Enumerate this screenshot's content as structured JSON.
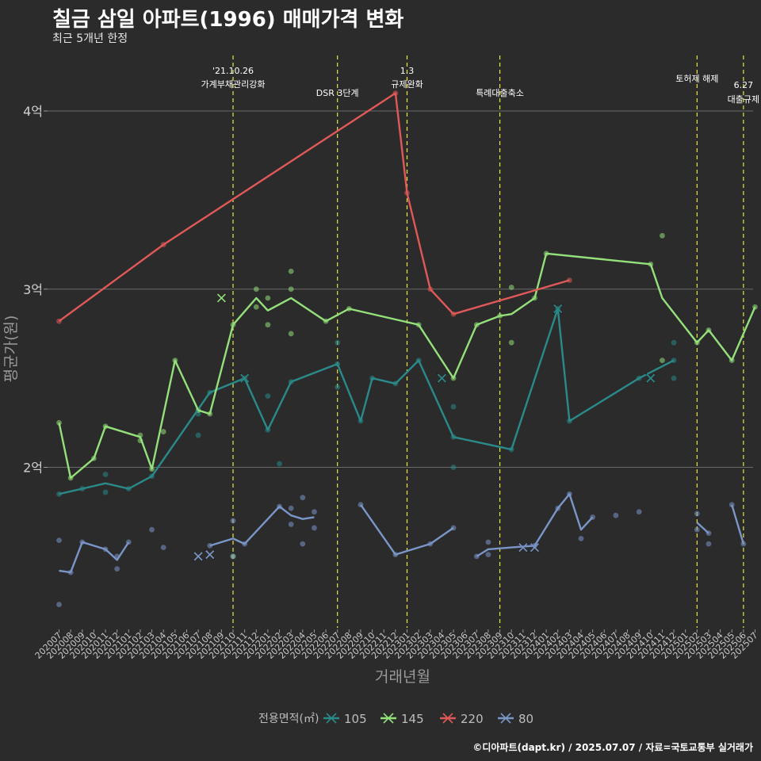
{
  "title": "칠금 삼일 아파트(1996) 매매가격 변화",
  "subtitle": "최근 5개년 한정",
  "caption": "©디아파트(dapt.kr) / 2025.07.07 / 자료=국토교통부 실거래가",
  "chart_data": {
    "type": "line",
    "xlabel": "거래년월",
    "ylabel": "평균가(원)",
    "ylim": [
      11500,
      43000
    ],
    "yticks": [
      {
        "v": 20000,
        "label": "2억"
      },
      {
        "v": 30000,
        "label": "3억"
      },
      {
        "v": 40000,
        "label": "4억"
      }
    ],
    "categories": [
      "202007",
      "202008",
      "202009",
      "202010",
      "202011",
      "202012",
      "202101",
      "202102",
      "202103",
      "202104",
      "202105",
      "202106",
      "202107",
      "202108",
      "202109",
      "202110",
      "202111",
      "202112",
      "202201",
      "202202",
      "202203",
      "202204",
      "202205",
      "202206",
      "202207",
      "202208",
      "202209",
      "202210",
      "202211",
      "202212",
      "202301",
      "202302",
      "202303",
      "202304",
      "202305",
      "202306",
      "202307",
      "202308",
      "202309",
      "202310",
      "202311",
      "202312",
      "202401",
      "202402",
      "202403",
      "202404",
      "202405",
      "202406",
      "202407",
      "202408",
      "202409",
      "202410",
      "202411",
      "202412",
      "202501",
      "202502",
      "202503",
      "202504",
      "202505",
      "202506",
      "202507"
    ],
    "grid": true,
    "legend_title": "전용면적(㎡)",
    "legend_position": "bottom",
    "annotations": [
      {
        "x": "202110",
        "lines": [
          "'21.10.26",
          "가계부채관리강화"
        ]
      },
      {
        "x": "202207",
        "lines": [
          "DSR 3단계"
        ]
      },
      {
        "x": "202301",
        "lines": [
          "1.3",
          "규제완화"
        ]
      },
      {
        "x": "202309",
        "lines": [
          "특례대출축소"
        ]
      },
      {
        "x": "202502",
        "lines": [
          "토허제 해제"
        ]
      },
      {
        "x": "202506",
        "lines": [
          "6.27",
          "대출규제"
        ]
      }
    ],
    "series": [
      {
        "name": "105",
        "color": "#2a8a8a",
        "line": [
          [
            "202007",
            18500
          ],
          [
            "202009",
            18800
          ],
          [
            "202011",
            19100
          ],
          [
            "202101",
            18800
          ],
          [
            "202103",
            19500
          ],
          [
            "202108",
            24200
          ],
          [
            "202111",
            25000
          ],
          [
            "202201",
            22100
          ],
          [
            "202203",
            24800
          ],
          [
            "202207",
            25800
          ],
          [
            "202209",
            22600
          ],
          [
            "202210",
            25000
          ],
          [
            "202212",
            24700
          ],
          [
            "202302",
            26000
          ],
          [
            "202305",
            21700
          ],
          [
            "202310",
            21000
          ],
          [
            "202402",
            28900
          ],
          [
            "202403",
            22600
          ],
          [
            "202409",
            25000
          ],
          [
            "202412",
            26000
          ]
        ],
        "points": [
          [
            "202007",
            18500
          ],
          [
            "202009",
            18800
          ],
          [
            "202011",
            18600
          ],
          [
            "202011",
            19600
          ],
          [
            "202101",
            18800
          ],
          [
            "202103",
            19500
          ],
          [
            "202108",
            24200
          ],
          [
            "202107",
            23000
          ],
          [
            "202107",
            21800
          ],
          [
            "202111",
            25000
          ],
          [
            "202201",
            22100
          ],
          [
            "202201",
            24000
          ],
          [
            "202202",
            20200
          ],
          [
            "202203",
            24800
          ],
          [
            "202207",
            25800
          ],
          [
            "202207",
            27000
          ],
          [
            "202207",
            24500
          ],
          [
            "202209",
            22600
          ],
          [
            "202210",
            25000
          ],
          [
            "202212",
            24700
          ],
          [
            "202302",
            26000
          ],
          [
            "202305",
            21700
          ],
          [
            "202305",
            23400
          ],
          [
            "202305",
            20000
          ],
          [
            "202310",
            21000
          ],
          [
            "202402",
            28900
          ],
          [
            "202403",
            22600
          ],
          [
            "202409",
            25000
          ],
          [
            "202412",
            26000
          ],
          [
            "202412",
            25000
          ],
          [
            "202412",
            27000
          ]
        ],
        "cancels": [
          [
            "202111",
            25000
          ],
          [
            "202304",
            25000
          ],
          [
            "202402",
            28900
          ],
          [
            "202410",
            25000
          ]
        ]
      },
      {
        "name": "145",
        "color": "#94e07a",
        "line": [
          [
            "202007",
            22500
          ],
          [
            "202008",
            19400
          ],
          [
            "202010",
            20500
          ],
          [
            "202011",
            22300
          ],
          [
            "202102",
            21700
          ],
          [
            "202103",
            19900
          ],
          [
            "202105",
            26000
          ],
          [
            "202107",
            23200
          ],
          [
            "202108",
            23000
          ],
          [
            "202110",
            28000
          ],
          [
            "202112",
            29500
          ],
          [
            "202201",
            28800
          ],
          [
            "202203",
            29500
          ],
          [
            "202206",
            28200
          ],
          [
            "202208",
            28900
          ],
          [
            "202302",
            28000
          ],
          [
            "202305",
            25000
          ],
          [
            "202307",
            28000
          ],
          [
            "202309",
            28500
          ],
          [
            "202310",
            28600
          ],
          [
            "202312",
            29500
          ],
          [
            "202401",
            32000
          ],
          [
            "202410",
            31400
          ],
          [
            "202411",
            29500
          ],
          [
            "202502",
            27000
          ],
          [
            "202503",
            27700
          ],
          [
            "202505",
            26000
          ],
          [
            "202507",
            29000
          ]
        ],
        "points": [
          [
            "202007",
            22500
          ],
          [
            "202008",
            19400
          ],
          [
            "202010",
            20500
          ],
          [
            "202011",
            22300
          ],
          [
            "202102",
            21800
          ],
          [
            "202102",
            21500
          ],
          [
            "202103",
            19900
          ],
          [
            "202104",
            22000
          ],
          [
            "202105",
            26000
          ],
          [
            "202107",
            23200
          ],
          [
            "202108",
            23000
          ],
          [
            "202110",
            28000
          ],
          [
            "202110",
            15000
          ],
          [
            "202112",
            30000
          ],
          [
            "202112",
            29000
          ],
          [
            "202201",
            29500
          ],
          [
            "202201",
            28000
          ],
          [
            "202203",
            31000
          ],
          [
            "202203",
            30000
          ],
          [
            "202203",
            27500
          ],
          [
            "202206",
            28200
          ],
          [
            "202208",
            28900
          ],
          [
            "202302",
            28000
          ],
          [
            "202305",
            25000
          ],
          [
            "202307",
            28000
          ],
          [
            "202309",
            28500
          ],
          [
            "202310",
            30100
          ],
          [
            "202310",
            27000
          ],
          [
            "202312",
            29500
          ],
          [
            "202401",
            32000
          ],
          [
            "202410",
            31400
          ],
          [
            "202411",
            33000
          ],
          [
            "202411",
            26000
          ],
          [
            "202502",
            27000
          ],
          [
            "202503",
            27700
          ],
          [
            "202505",
            26000
          ],
          [
            "202507",
            29000
          ]
        ],
        "cancels": [
          [
            "202109",
            29500
          ]
        ]
      },
      {
        "name": "220",
        "color": "#e05858",
        "line": [
          [
            "202007",
            28200
          ],
          [
            "202104",
            32500
          ],
          [
            "202212",
            41000
          ],
          [
            "202301",
            35400
          ],
          [
            "202303",
            30000
          ],
          [
            "202305",
            28600
          ],
          [
            "202403",
            30500
          ]
        ],
        "points": [
          [
            "202007",
            28200
          ],
          [
            "202104",
            32500
          ],
          [
            "202212",
            41000
          ],
          [
            "202301",
            35400
          ],
          [
            "202303",
            30000
          ],
          [
            "202305",
            28600
          ],
          [
            "202403",
            30500
          ]
        ],
        "cancels": []
      },
      {
        "name": "80",
        "color": "#7a96c8",
        "line": [
          [
            "202007",
            14200
          ],
          [
            "202008",
            14100
          ],
          [
            "202009",
            15800
          ],
          [
            "202011",
            15400
          ],
          [
            "202012",
            14800
          ],
          [
            "202101",
            15800
          ],
          null,
          [
            "202108",
            15600
          ],
          [
            "202110",
            16000
          ],
          [
            "202111",
            15700
          ],
          [
            "202202",
            17800
          ],
          [
            "202203",
            17300
          ],
          [
            "202204",
            17100
          ],
          [
            "202205",
            17200
          ],
          null,
          [
            "202209",
            17900
          ],
          [
            "202212",
            15100
          ],
          [
            "202302",
            15500
          ],
          [
            "202303",
            15700
          ],
          [
            "202305",
            16600
          ],
          null,
          [
            "202307",
            15000
          ],
          [
            "202308",
            15400
          ],
          [
            "202310",
            15500
          ],
          [
            "202312",
            15600
          ],
          [
            "202402",
            17700
          ],
          [
            "202403",
            18500
          ],
          [
            "202404",
            16500
          ],
          [
            "202405",
            17200
          ],
          null,
          [
            "202502",
            16900
          ],
          [
            "202503",
            16300
          ],
          null,
          [
            "202505",
            17900
          ],
          [
            "202506",
            15700
          ]
        ],
        "points": [
          [
            "202007",
            15900
          ],
          [
            "202007",
            12300
          ],
          [
            "202008",
            14100
          ],
          [
            "202009",
            15800
          ],
          [
            "202011",
            15400
          ],
          [
            "202012",
            15000
          ],
          [
            "202012",
            14300
          ],
          [
            "202101",
            15800
          ],
          [
            "202103",
            16500
          ],
          [
            "202104",
            15500
          ],
          [
            "202108",
            15600
          ],
          [
            "202110",
            17000
          ],
          [
            "202110",
            15000
          ],
          [
            "202111",
            15700
          ],
          [
            "202202",
            17800
          ],
          [
            "202203",
            16800
          ],
          [
            "202203",
            17700
          ],
          [
            "202204",
            15700
          ],
          [
            "202204",
            18300
          ],
          [
            "202205",
            16600
          ],
          [
            "202205",
            17500
          ],
          [
            "202209",
            17900
          ],
          [
            "202212",
            15100
          ],
          [
            "202303",
            15700
          ],
          [
            "202305",
            16600
          ],
          [
            "202307",
            15000
          ],
          [
            "202308",
            15800
          ],
          [
            "202308",
            15100
          ],
          [
            "202312",
            15600
          ],
          [
            "202402",
            17700
          ],
          [
            "202403",
            18500
          ],
          [
            "202404",
            16000
          ],
          [
            "202405",
            17200
          ],
          [
            "202407",
            17300
          ],
          [
            "202409",
            17500
          ],
          [
            "202502",
            17400
          ],
          [
            "202502",
            16500
          ],
          [
            "202503",
            16300
          ],
          [
            "202503",
            15700
          ],
          [
            "202505",
            17900
          ],
          [
            "202506",
            15700
          ]
        ],
        "cancels": [
          [
            "202107",
            15000
          ],
          [
            "202108",
            15100
          ],
          [
            "202311",
            15500
          ],
          [
            "202312",
            15500
          ]
        ]
      }
    ]
  }
}
